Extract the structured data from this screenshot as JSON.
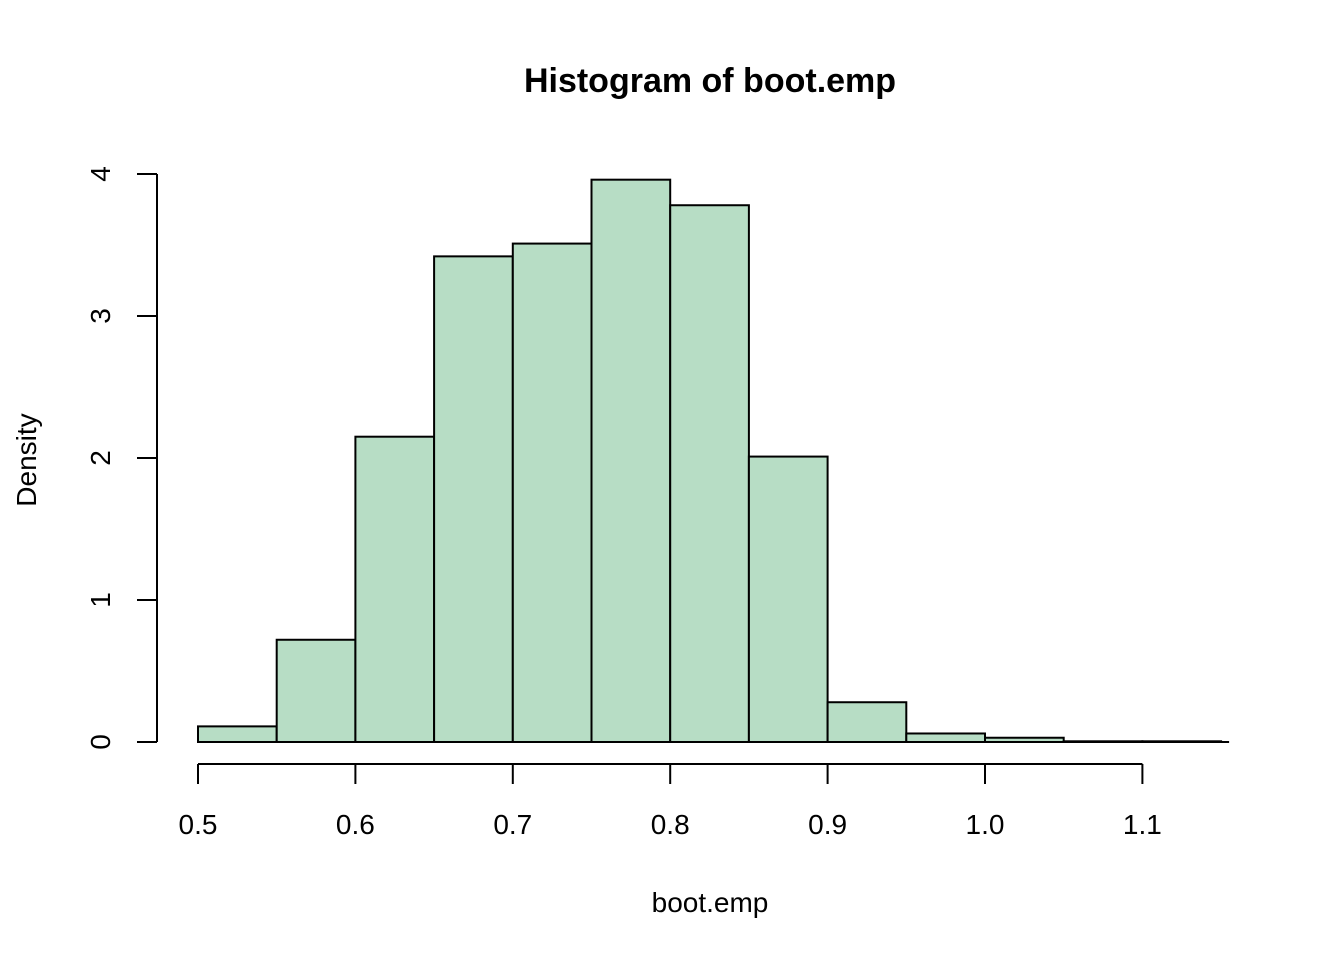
{
  "chart_data": {
    "type": "bar",
    "title": "Histogram of boot.emp",
    "xlabel": "boot.emp",
    "ylabel": "Density",
    "bins": [
      {
        "x0": 0.5,
        "x1": 0.55,
        "density": 0.11
      },
      {
        "x0": 0.55,
        "x1": 0.6,
        "density": 0.72
      },
      {
        "x0": 0.6,
        "x1": 0.65,
        "density": 2.15
      },
      {
        "x0": 0.65,
        "x1": 0.7,
        "density": 3.42
      },
      {
        "x0": 0.7,
        "x1": 0.75,
        "density": 3.51
      },
      {
        "x0": 0.75,
        "x1": 0.8,
        "density": 3.96
      },
      {
        "x0": 0.8,
        "x1": 0.85,
        "density": 3.78
      },
      {
        "x0": 0.85,
        "x1": 0.9,
        "density": 2.01
      },
      {
        "x0": 0.9,
        "x1": 0.95,
        "density": 0.28
      },
      {
        "x0": 0.95,
        "x1": 1.0,
        "density": 0.06
      },
      {
        "x0": 1.0,
        "x1": 1.05,
        "density": 0.03
      },
      {
        "x0": 1.05,
        "x1": 1.1,
        "density": 0.005
      },
      {
        "x0": 1.1,
        "x1": 1.15,
        "density": 0.005
      }
    ],
    "xticks": [
      "0.5",
      "0.6",
      "0.7",
      "0.8",
      "0.9",
      "1.0",
      "1.1"
    ],
    "yticks": [
      "0",
      "1",
      "2",
      "3",
      "4"
    ],
    "xlim": [
      0.5,
      1.15
    ],
    "ylim": [
      0,
      4
    ],
    "grid": false,
    "bar_color": "#b7ddc5",
    "edge_color": "#000000"
  }
}
